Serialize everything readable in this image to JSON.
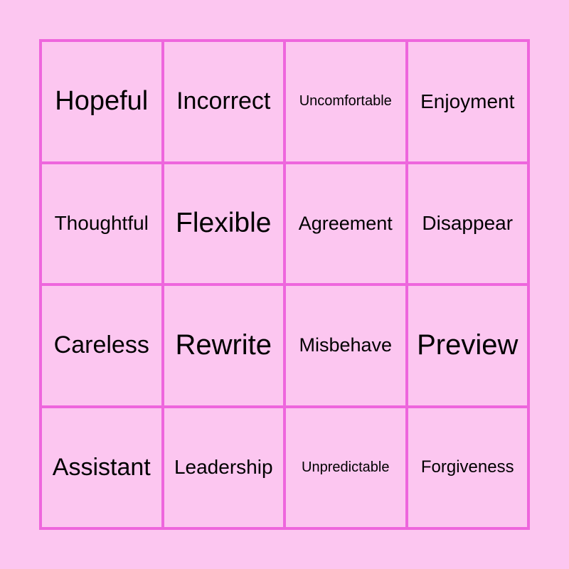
{
  "card": {
    "colors": {
      "background": "#fcc6f0",
      "grid_line": "#ee66dd",
      "text": "#000000"
    },
    "cells": [
      [
        "Hopeful",
        "Incorrect",
        "Uncomfortable",
        "Enjoyment"
      ],
      [
        "Thoughtful",
        "Flexible",
        "Agreement",
        "Disappear"
      ],
      [
        "Careless",
        "Rewrite",
        "Misbehave",
        "Preview"
      ],
      [
        "Assistant",
        "Leadership",
        "Unpredictable",
        "Forgiveness"
      ]
    ]
  }
}
